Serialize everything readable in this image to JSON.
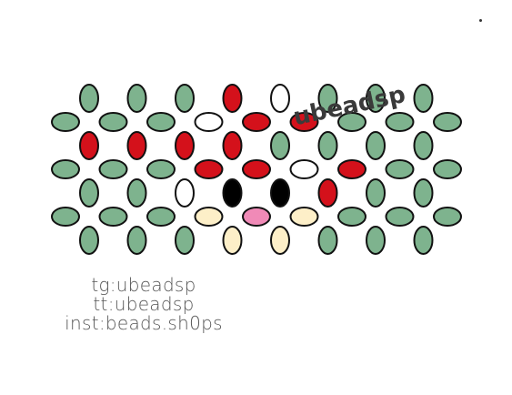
{
  "colors": {
    "green": "#7eb38e",
    "red": "#d4111b",
    "white": "#ffffff",
    "black": "#000000",
    "cream": "#fdefc8",
    "pink": "#f08ab7",
    "outline": "#111111"
  },
  "pattern": {
    "vertical_rows": [
      [
        "green",
        "green",
        "green",
        "red",
        "white",
        "green",
        "green",
        "green"
      ],
      [
        "red",
        "red",
        "red",
        "red",
        "green",
        "green",
        "green",
        "green"
      ],
      [
        "green",
        "green",
        "white",
        "black",
        "black",
        "red",
        "green",
        "green"
      ],
      [
        "green",
        "green",
        "green",
        "cream",
        "cream",
        "green",
        "green",
        "green"
      ]
    ],
    "horizontal_rows": [
      [
        "green",
        "green",
        "green",
        "white",
        "red",
        "red",
        "green",
        "green",
        "green"
      ],
      [
        "green",
        "green",
        "green",
        "red",
        "red",
        "white",
        "red",
        "green",
        "green"
      ],
      [
        "green",
        "green",
        "green",
        "cream",
        "pink",
        "cream",
        "green",
        "green",
        "green"
      ]
    ]
  },
  "watermark": "ubeadsp",
  "credits": [
    "tg:ubeadsp",
    "tt:ubeadsp",
    "inst:beads.sh0ps"
  ]
}
